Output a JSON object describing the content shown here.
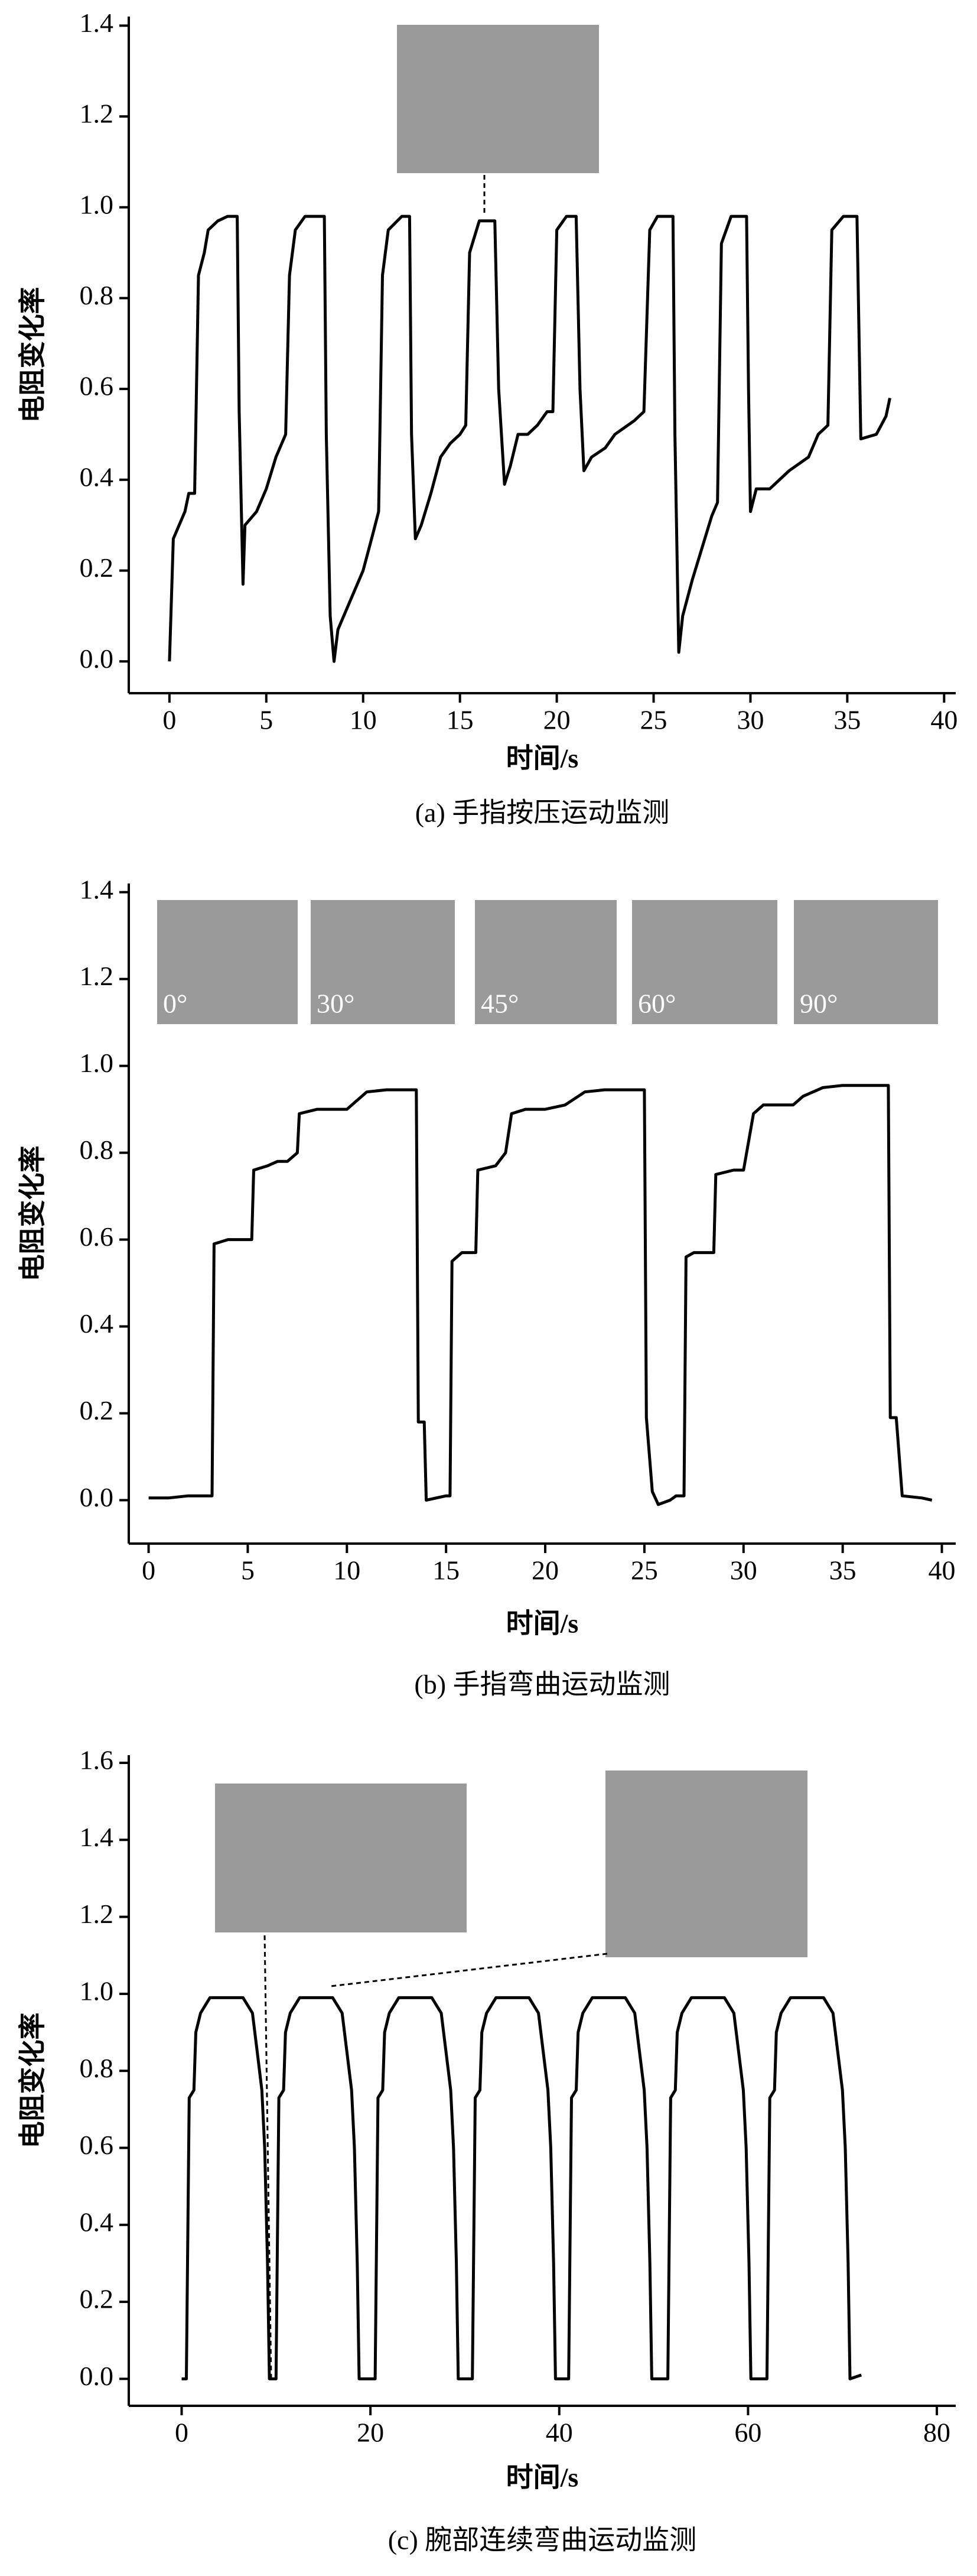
{
  "chart_data": [
    {
      "type": "line",
      "x_label": "时间/s",
      "y_label": "电阻变化率",
      "caption": "(a) 手指按压运动监测",
      "x": [
        0,
        0.2,
        0.8,
        1,
        1.3,
        1.5,
        1.8,
        2,
        2.5,
        3,
        3.5,
        3.6,
        3.8,
        3.9,
        4.5,
        5,
        5.5,
        6,
        6.2,
        6.5,
        7,
        8,
        8.1,
        8.3,
        8.5,
        8.7,
        9,
        10,
        10.5,
        10.8,
        11,
        11.3,
        12,
        12.4,
        12.5,
        12.7,
        13,
        13.5,
        14,
        14.5,
        15,
        15.3,
        15.5,
        16,
        16.8,
        17,
        17.3,
        17.6,
        18,
        18.5,
        19,
        19.5,
        19.8,
        20,
        20.5,
        21,
        21.2,
        21.4,
        21.8,
        22.5,
        23,
        24,
        24.5,
        24.8,
        25.2,
        26,
        26.1,
        26.3,
        26.5,
        27,
        27.5,
        28,
        28.3,
        28.5,
        29,
        29.8,
        29.9,
        30,
        30.3,
        31,
        32,
        33,
        33.5,
        34,
        34.2,
        34.8,
        35.5,
        35.7,
        36.5,
        37,
        37.2
      ],
      "series": [
        {
          "color": "#000000",
          "values": [
            0,
            0.27,
            0.33,
            0.37,
            0.37,
            0.85,
            0.9,
            0.95,
            0.97,
            0.98,
            0.98,
            0.55,
            0.17,
            0.3,
            0.33,
            0.38,
            0.45,
            0.5,
            0.85,
            0.95,
            0.98,
            0.98,
            0.5,
            0.1,
            0,
            0.07,
            0.1,
            0.2,
            0.28,
            0.33,
            0.85,
            0.95,
            0.98,
            0.98,
            0.5,
            0.27,
            0.3,
            0.37,
            0.45,
            0.48,
            0.5,
            0.52,
            0.9,
            0.97,
            0.97,
            0.6,
            0.39,
            0.43,
            0.5,
            0.5,
            0.52,
            0.55,
            0.55,
            0.95,
            0.98,
            0.98,
            0.6,
            0.42,
            0.45,
            0.47,
            0.5,
            0.53,
            0.55,
            0.95,
            0.98,
            0.98,
            0.5,
            0.02,
            0.1,
            0.18,
            0.25,
            0.32,
            0.35,
            0.92,
            0.98,
            0.98,
            0.6,
            0.33,
            0.38,
            0.38,
            0.42,
            0.45,
            0.5,
            0.52,
            0.95,
            0.98,
            0.98,
            0.49,
            0.5,
            0.54,
            0.58
          ]
        }
      ],
      "xlim": [
        -2.1,
        40.6
      ],
      "ylim": [
        -0.07,
        1.42
      ],
      "xticks": [
        0,
        5,
        10,
        15,
        20,
        25,
        30,
        35,
        40
      ],
      "yticks": [
        {
          "value": 0,
          "label": "0.0"
        },
        {
          "value": 0.2,
          "label": "0.2"
        },
        {
          "value": 0.4,
          "label": "0.4"
        },
        {
          "value": 0.6,
          "label": "0.6"
        },
        {
          "value": 0.8,
          "label": "0.8"
        },
        {
          "value": 1,
          "label": "1.0"
        },
        {
          "value": 1.2,
          "label": "1.2"
        },
        {
          "value": 1.4,
          "label": "1.4"
        }
      ]
    },
    {
      "type": "line",
      "x_label": "时间/s",
      "y_label": "电阻变化率",
      "caption": "(b) 手指弯曲运动监测",
      "inset_labels": [
        "0°",
        "30°",
        "45°",
        "60°",
        "90°"
      ],
      "x": [
        0,
        1,
        2,
        3,
        3.2,
        3.3,
        4,
        5,
        5.2,
        5.3,
        6,
        6.5,
        7,
        7.5,
        7.6,
        8.5,
        10,
        10.5,
        11,
        12,
        13.5,
        13.6,
        13.9,
        14,
        15,
        15.2,
        15.3,
        15.8,
        16.5,
        16.6,
        17.5,
        18,
        18.3,
        19,
        20,
        21,
        22,
        23,
        25,
        25.1,
        25.4,
        25.7,
        26.3,
        26.6,
        27,
        27.1,
        27.5,
        28.5,
        28.6,
        29.5,
        30,
        30.5,
        31,
        32.5,
        33,
        34,
        35,
        37.3,
        37.4,
        37.7,
        38,
        39,
        39.5
      ],
      "series": [
        {
          "color": "#000000",
          "values": [
            0.005,
            0.005,
            0.01,
            0.01,
            0.01,
            0.59,
            0.6,
            0.6,
            0.6,
            0.76,
            0.77,
            0.78,
            0.78,
            0.8,
            0.89,
            0.9,
            0.9,
            0.92,
            0.94,
            0.945,
            0.945,
            0.18,
            0.18,
            0,
            0.01,
            0.01,
            0.55,
            0.57,
            0.57,
            0.76,
            0.77,
            0.8,
            0.89,
            0.9,
            0.9,
            0.91,
            0.94,
            0.945,
            0.945,
            0.19,
            0.02,
            -0.01,
            0,
            0.01,
            0.01,
            0.56,
            0.57,
            0.57,
            0.75,
            0.76,
            0.76,
            0.89,
            0.91,
            0.91,
            0.93,
            0.95,
            0.955,
            0.955,
            0.19,
            0.19,
            0.01,
            0.005,
            0
          ]
        }
      ],
      "xlim": [
        -1,
        40.7
      ],
      "ylim": [
        -0.1,
        1.42
      ],
      "xticks": [
        0,
        5,
        10,
        15,
        20,
        25,
        30,
        35,
        40
      ],
      "yticks": [
        {
          "value": 0,
          "label": "0.0"
        },
        {
          "value": 0.2,
          "label": "0.2"
        },
        {
          "value": 0.4,
          "label": "0.4"
        },
        {
          "value": 0.6,
          "label": "0.6"
        },
        {
          "value": 0.8,
          "label": "0.8"
        },
        {
          "value": 1,
          "label": "1.0"
        },
        {
          "value": 1.2,
          "label": "1.2"
        },
        {
          "value": 1.4,
          "label": "1.4"
        }
      ]
    },
    {
      "type": "line",
      "x_label": "时间/s",
      "y_label": "电阻变化率",
      "caption": "(c) 腕部连续弯曲运动监测",
      "x": [
        0,
        0.5,
        0.8,
        1.3,
        1.5,
        2,
        3,
        6.5,
        7.5,
        8,
        8.5,
        8.8,
        9.1,
        9.3,
        9.8,
        10,
        10.3,
        10.8,
        11,
        11.5,
        12.5,
        16,
        17,
        17.5,
        18,
        18.3,
        18.6,
        18.8,
        20.3,
        20.5,
        20.8,
        21.3,
        21.5,
        22,
        23,
        26.5,
        27.5,
        28,
        28.5,
        28.8,
        29.1,
        29.3,
        30.6,
        30.8,
        31.1,
        31.6,
        31.8,
        32.3,
        33.3,
        36.8,
        37.8,
        38.3,
        38.8,
        39.1,
        39.4,
        39.6,
        40.8,
        41,
        41.3,
        41.8,
        42,
        42.5,
        43.5,
        47,
        48,
        48.5,
        49,
        49.3,
        49.6,
        49.8,
        51.3,
        51.5,
        51.8,
        52.3,
        52.5,
        53,
        54,
        57.5,
        58.5,
        59,
        59.5,
        59.8,
        60.1,
        60.3,
        61.8,
        62,
        62.3,
        62.8,
        63,
        63.5,
        64.5,
        68,
        69,
        69.5,
        70,
        70.3,
        70.6,
        70.8,
        72
      ],
      "series": [
        {
          "color": "#000000",
          "values": [
            0,
            0,
            0.73,
            0.75,
            0.9,
            0.95,
            0.99,
            0.99,
            0.95,
            0.85,
            0.75,
            0.6,
            0.3,
            0,
            0,
            0,
            0.73,
            0.75,
            0.9,
            0.95,
            0.99,
            0.99,
            0.95,
            0.85,
            0.75,
            0.6,
            0.3,
            0,
            0,
            0,
            0.73,
            0.75,
            0.9,
            0.95,
            0.99,
            0.99,
            0.95,
            0.85,
            0.75,
            0.6,
            0.3,
            0,
            0,
            0,
            0.73,
            0.75,
            0.9,
            0.95,
            0.99,
            0.99,
            0.95,
            0.85,
            0.75,
            0.6,
            0.3,
            0,
            0,
            0,
            0.73,
            0.75,
            0.9,
            0.95,
            0.99,
            0.99,
            0.95,
            0.85,
            0.75,
            0.6,
            0.3,
            0,
            0,
            0,
            0.73,
            0.75,
            0.9,
            0.95,
            0.99,
            0.99,
            0.95,
            0.85,
            0.75,
            0.6,
            0.3,
            0,
            0,
            0,
            0.73,
            0.75,
            0.9,
            0.95,
            0.99,
            0.99,
            0.95,
            0.85,
            0.75,
            0.6,
            0.3,
            0,
            0.01
          ]
        }
      ],
      "xlim": [
        -5.6,
        82
      ],
      "ylim": [
        -0.07,
        1.62
      ],
      "xticks": [
        0,
        20,
        40,
        60,
        80
      ],
      "yticks": [
        {
          "value": 0,
          "label": "0.0"
        },
        {
          "value": 0.2,
          "label": "0.2"
        },
        {
          "value": 0.4,
          "label": "0.4"
        },
        {
          "value": 0.6,
          "label": "0.6"
        },
        {
          "value": 0.8,
          "label": "0.8"
        },
        {
          "value": 1,
          "label": "1.0"
        },
        {
          "value": 1.2,
          "label": "1.2"
        },
        {
          "value": 1.4,
          "label": "1.4"
        },
        {
          "value": 1.6,
          "label": "1.6"
        }
      ]
    }
  ]
}
